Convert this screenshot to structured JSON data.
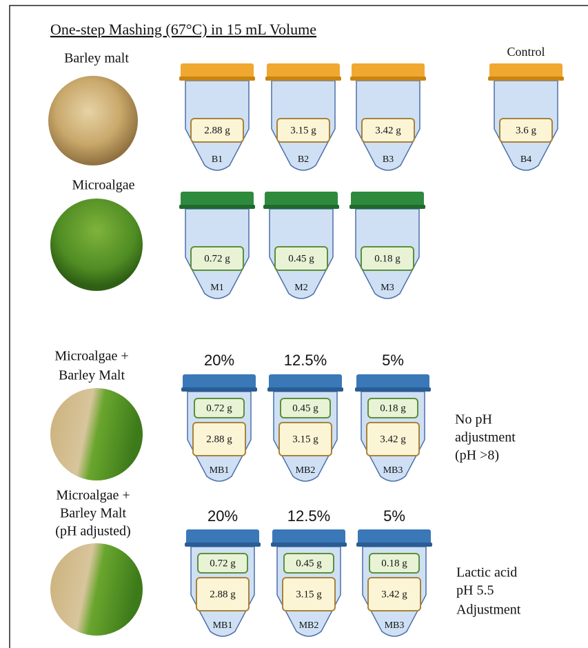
{
  "title": "One-step Mashing (67°C) in 15 mL Volume",
  "groups": [
    {
      "label": [
        "Barley malt"
      ],
      "tubes": [
        {
          "name": "B1",
          "amounts": [
            "2.88 g"
          ]
        },
        {
          "name": "B2",
          "amounts": [
            "3.15 g"
          ]
        },
        {
          "name": "B3",
          "amounts": [
            "3.42 g"
          ]
        }
      ]
    },
    {
      "label": [
        "Microalgae"
      ],
      "tubes": [
        {
          "name": "M1",
          "amounts": [
            "0.72 g"
          ]
        },
        {
          "name": "M2",
          "amounts": [
            "0.45 g"
          ]
        },
        {
          "name": "M3",
          "amounts": [
            "0.18 g"
          ]
        }
      ]
    },
    {
      "label": [
        "Microalgae +",
        "Barley Malt"
      ],
      "tubes": [
        {
          "percent": "20%",
          "name": "MB1",
          "amounts": [
            "0.72 g",
            "2.88 g"
          ]
        },
        {
          "percent": "12.5%",
          "name": "MB2",
          "amounts": [
            "0.45 g",
            "3.15 g"
          ]
        },
        {
          "percent": "5%",
          "name": "MB3",
          "amounts": [
            "0.18 g",
            "3.42 g"
          ]
        }
      ],
      "note": [
        "No pH",
        "adjustment",
        "(pH >8)"
      ]
    },
    {
      "label": [
        "Microalgae +",
        "Barley Malt",
        "(pH adjusted)"
      ],
      "tubes": [
        {
          "percent": "20%",
          "name": "MB1",
          "amounts": [
            "0.72 g",
            "2.88 g"
          ]
        },
        {
          "percent": "12.5%",
          "name": "MB2",
          "amounts": [
            "0.45 g",
            "3.15 g"
          ]
        },
        {
          "percent": "5%",
          "name": "MB3",
          "amounts": [
            "0.18 g",
            "3.42 g"
          ]
        }
      ],
      "note": [
        "Lactic acid",
        "pH 5.5",
        "Adjustment"
      ]
    }
  ],
  "control": {
    "heading": "Control",
    "name": "B4",
    "amounts": [
      "3.6 g"
    ]
  }
}
